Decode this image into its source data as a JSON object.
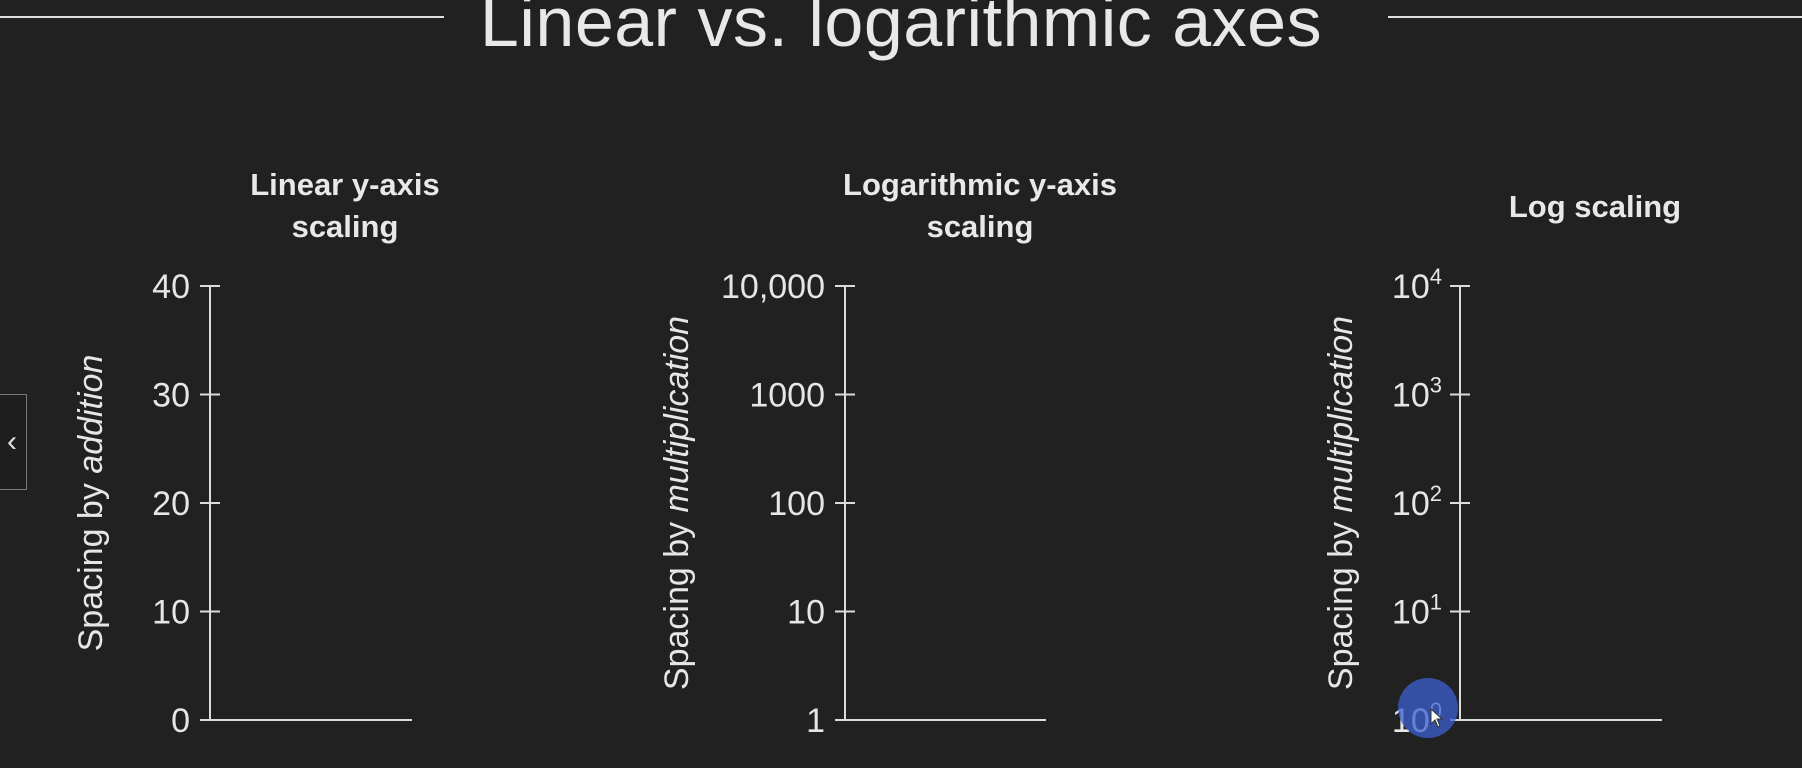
{
  "title": "Linear vs. logarithmic axes",
  "chart_data": [
    {
      "type": "line",
      "title": "Linear y-axis scaling",
      "ylabel": "Spacing by addition",
      "ylabel_parts": [
        "Spacing by ",
        "addition"
      ],
      "yscale": "linear",
      "ylim": [
        0,
        40
      ],
      "yticks": [
        0,
        10,
        20,
        30,
        40
      ],
      "yticklabels": [
        "0",
        "10",
        "20",
        "30",
        "40"
      ],
      "series": []
    },
    {
      "type": "line",
      "title": "Logarithmic y-axis scaling",
      "ylabel": "Spacing by multiplication",
      "ylabel_parts": [
        "Spacing by ",
        "multiplication"
      ],
      "yscale": "log",
      "ylim": [
        1,
        10000
      ],
      "yticks": [
        1,
        10,
        100,
        1000,
        10000
      ],
      "yticklabels": [
        "1",
        "10",
        "100",
        "1000",
        "10,000"
      ],
      "series": []
    },
    {
      "type": "line",
      "title": "Log scaling",
      "ylabel": "Spacing by multiplication",
      "ylabel_parts": [
        "Spacing by ",
        "multiplication"
      ],
      "yscale": "log",
      "ylim": [
        1,
        10000
      ],
      "yticks": [
        1,
        10,
        100,
        1000,
        10000
      ],
      "yticklabels": [
        {
          "base": "10",
          "exp": "0"
        },
        {
          "base": "10",
          "exp": "1"
        },
        {
          "base": "10",
          "exp": "2"
        },
        {
          "base": "10",
          "exp": "3"
        },
        {
          "base": "10",
          "exp": "4"
        }
      ],
      "series": []
    }
  ],
  "colors": {
    "background": "#212121",
    "foreground": "#e6e6e6",
    "cursor_highlight": "#3c5fd2"
  },
  "icons": {
    "nav_tab": "chevron-left-icon",
    "cursor": "mouse-pointer-icon"
  }
}
